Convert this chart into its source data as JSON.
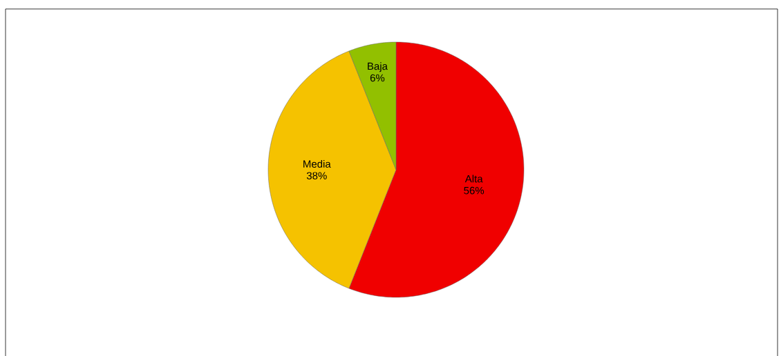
{
  "chart_data": {
    "type": "pie",
    "categories": [
      "Alta",
      "Media",
      "Baja"
    ],
    "values": [
      56,
      38,
      6
    ],
    "value_labels": [
      "56%",
      "38%",
      "6%"
    ],
    "colors": [
      "#f00000",
      "#f5c200",
      "#92c000"
    ]
  }
}
